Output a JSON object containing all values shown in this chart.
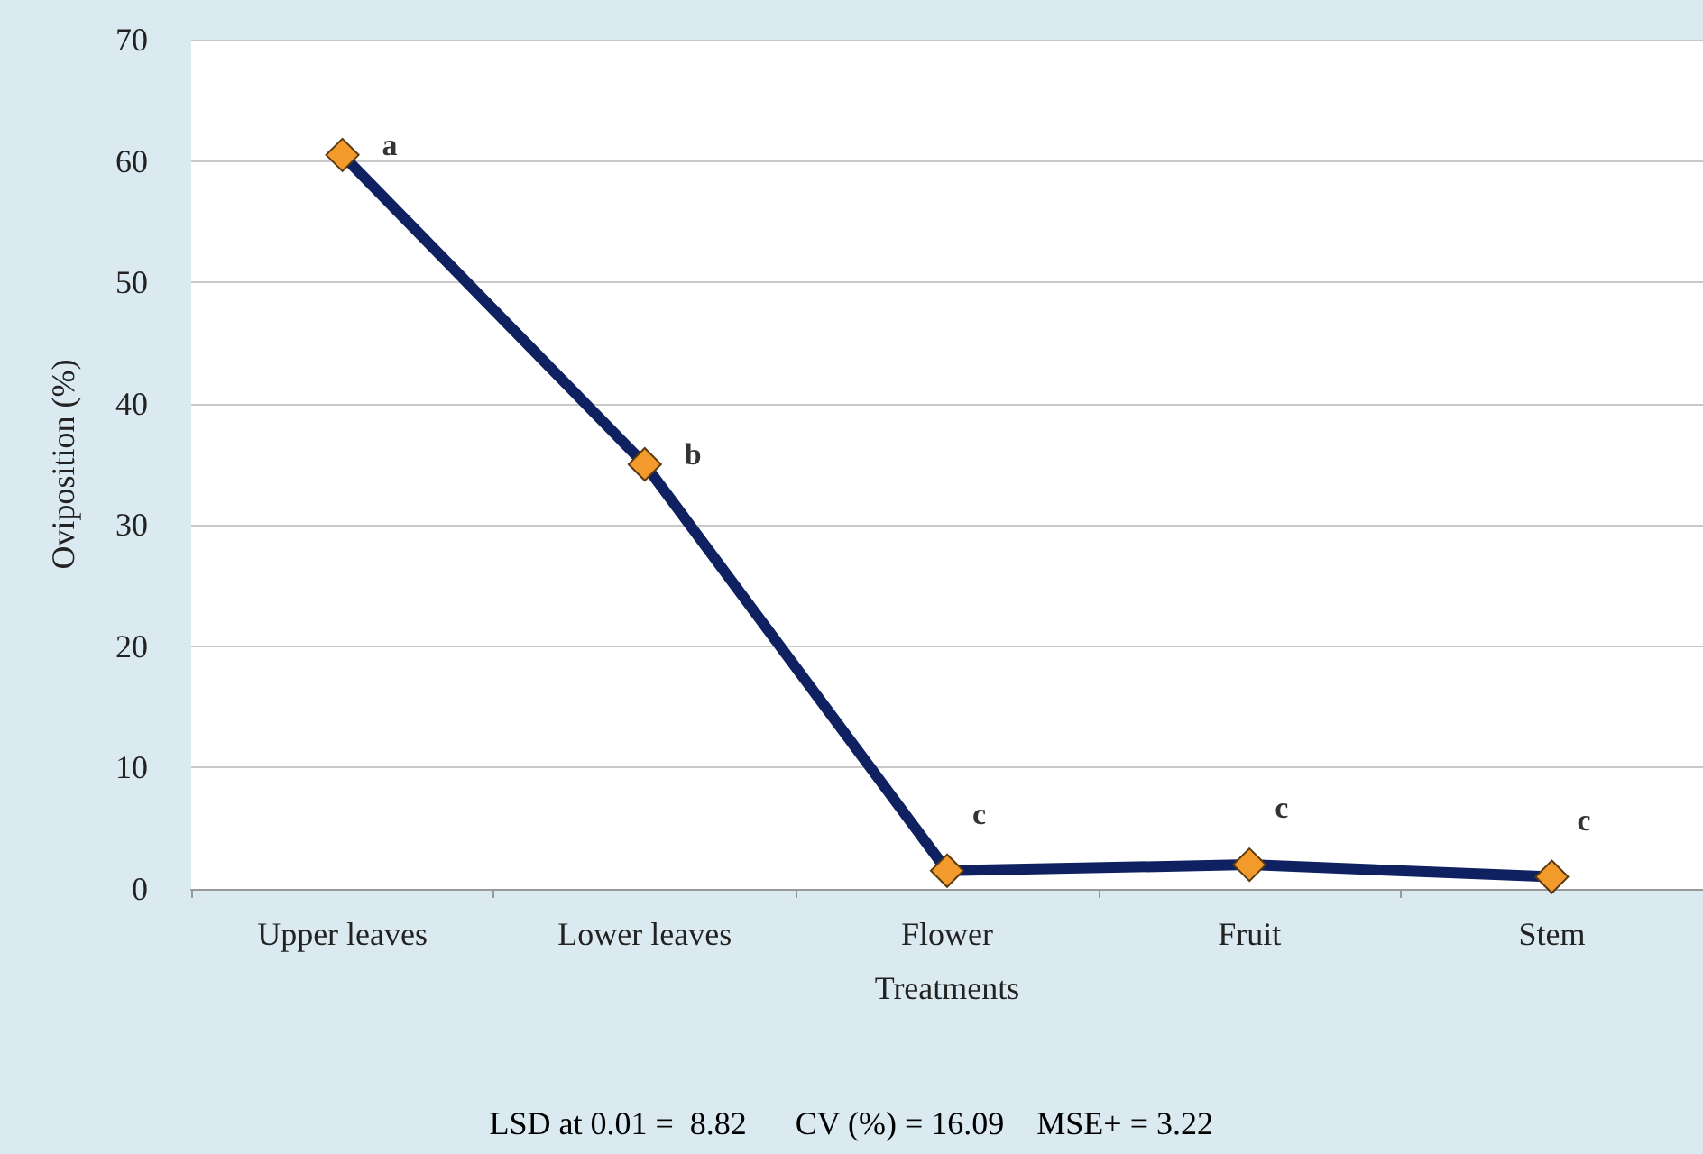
{
  "chart_data": {
    "type": "line",
    "xlabel": "Treatments",
    "ylabel": "Oviposition (%)",
    "categories": [
      "Upper leaves",
      "Lower leaves",
      "Flower",
      "Fruit",
      "Stem"
    ],
    "series": [
      {
        "color": "#0f2160",
        "values": [
          60.5,
          35,
          1.5,
          2,
          1
        ]
      }
    ],
    "ylim": [
      0,
      70
    ],
    "yticks": [
      0,
      10,
      20,
      30,
      40,
      50,
      60,
      70
    ],
    "grid": "y",
    "marker": "diamond",
    "line_style": "solid",
    "annotations": [
      {
        "text": "a",
        "x": "Upper leaves",
        "y": 60.5
      },
      {
        "text": "b",
        "x": "Lower leaves",
        "y": 35
      },
      {
        "text": "c",
        "x": "Flower",
        "y": 1.5
      },
      {
        "text": "c",
        "x": "Fruit",
        "y": 2
      },
      {
        "text": "c",
        "x": "Stem",
        "y": 1
      },
      "LSD at 0.01 =  8.82      CV (%) = 16.09    MSE+ = 3.22"
    ]
  }
}
